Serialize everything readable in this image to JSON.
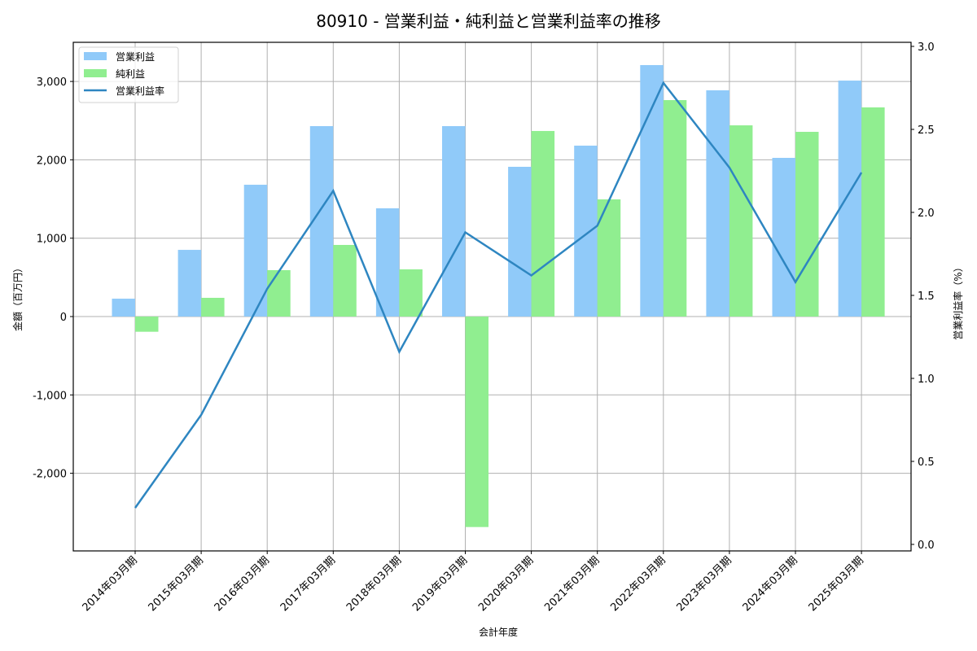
{
  "chart_data": {
    "type": "bar",
    "title": "80910 - 営業利益・純利益と営業利益率の推移",
    "xlabel": "会計年度",
    "ylabel": "金額（百万円）",
    "y2label": "営業利益率（%）",
    "categories": [
      "2014年03月期",
      "2015年03月期",
      "2016年03月期",
      "2017年03月期",
      "2018年03月期",
      "2019年03月期",
      "2020年03月期",
      "2021年03月期",
      "2022年03月期",
      "2023年03月期",
      "2024年03月期",
      "2025年03月期"
    ],
    "series": [
      {
        "name": "営業利益",
        "type": "bar",
        "axis": "left",
        "color": "#90caf9",
        "values": [
          228,
          851,
          1682,
          2430,
          1381,
          2430,
          1911,
          2181,
          3209,
          2887,
          2025,
          3011
        ]
      },
      {
        "name": "純利益",
        "type": "bar",
        "axis": "left",
        "color": "#90ee90",
        "values": [
          -194,
          239,
          592,
          914,
          602,
          -2686,
          2368,
          1495,
          2762,
          2440,
          2357,
          2669
        ]
      },
      {
        "name": "営業利益率",
        "type": "line",
        "axis": "right",
        "color": "#2e86c1",
        "values": [
          0.22,
          0.78,
          1.54,
          2.13,
          1.16,
          1.88,
          1.62,
          1.92,
          2.78,
          2.27,
          1.58,
          2.24
        ]
      }
    ],
    "ylim": [
      -3000,
      3500
    ],
    "y_ticks": [
      -2000,
      -1000,
      0,
      1000,
      2000,
      3000
    ],
    "y_tick_labels": [
      "-2,000",
      "-1,000",
      "0",
      "1,000",
      "2,000",
      "3,000"
    ],
    "y2lim": [
      0,
      3.0
    ],
    "y2_ticks": [
      0.0,
      0.5,
      1.0,
      1.5,
      2.0,
      2.5,
      3.0
    ],
    "y2_tick_labels": [
      "0.0",
      "0.5",
      "1.0",
      "1.5",
      "2.0",
      "2.5",
      "3.0"
    ],
    "grid": true,
    "legend_position": "upper left"
  }
}
